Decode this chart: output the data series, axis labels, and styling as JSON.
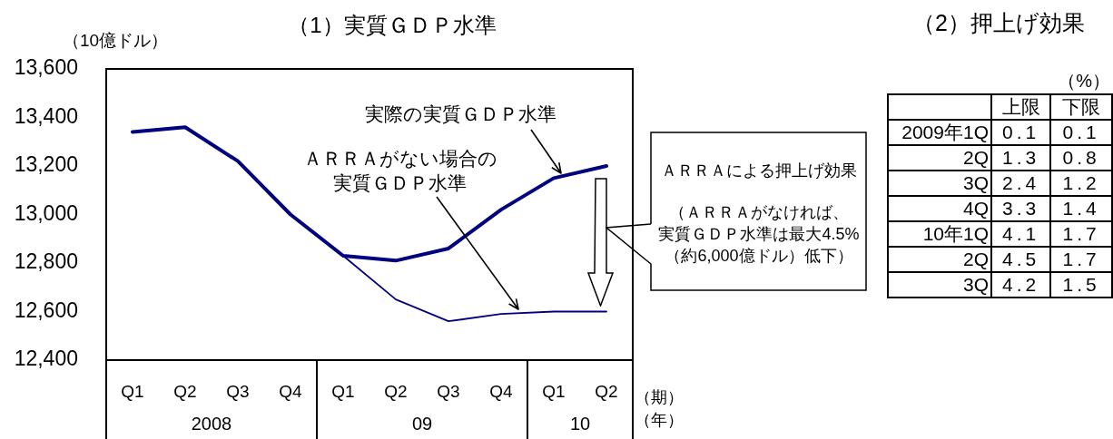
{
  "chart_data": [
    {
      "type": "line",
      "title": "（1）実質ＧＤＰ水準",
      "ylabel": "（10億ドル）",
      "xlabel": "（期）",
      "categories": [
        "Q1",
        "Q2",
        "Q3",
        "Q4",
        "Q1",
        "Q2",
        "Q3",
        "Q4",
        "Q1",
        "Q2"
      ],
      "series": [
        {
          "name": "実際の実質ＧＤＰ水準",
          "color": "#000080",
          "values": [
            13340,
            13360,
            13220,
            13000,
            12830,
            12810,
            12860,
            13020,
            13150,
            13200
          ]
        },
        {
          "name": "ＡＲＲＡがない場合の実質ＧＤＰ水準",
          "color": "#000080",
          "values": [
            null,
            null,
            null,
            null,
            12830,
            12650,
            12560,
            12590,
            12600,
            12600
          ]
        }
      ],
      "ylim": [
        12400,
        13600
      ],
      "yticks": [
        {
          "value": 12400,
          "label": "12,400"
        },
        {
          "value": 12600,
          "label": "12,600"
        },
        {
          "value": 12800,
          "label": "12,800"
        },
        {
          "value": 13000,
          "label": "13,000"
        },
        {
          "value": 13200,
          "label": "13,200"
        },
        {
          "value": 13400,
          "label": "13,400"
        },
        {
          "value": 13600,
          "label": "13,600"
        }
      ],
      "annotations": [
        "2008",
        "09",
        "10",
        "（年）",
        "ＡＲＲＡによる押上げ効果",
        "（ＡＲＲＡがなければ、実質ＧＤＰ水準は最大4.5%（約6,000億ドル）低下）"
      ]
    },
    {
      "type": "other",
      "title": "（2）押上げ効果",
      "annotations": [
        "（%）"
      ],
      "categories": [
        "2009年1Q",
        "2Q",
        "3Q",
        "4Q",
        "10年1Q",
        "2Q",
        "3Q"
      ],
      "series": [
        {
          "name": "上限",
          "values": [
            0.1,
            1.3,
            2.4,
            3.3,
            4.1,
            4.5,
            4.2
          ]
        },
        {
          "name": "下限",
          "values": [
            0.1,
            0.8,
            1.2,
            1.4,
            1.7,
            1.7,
            1.5
          ]
        }
      ],
      "data_labels": true
    }
  ]
}
